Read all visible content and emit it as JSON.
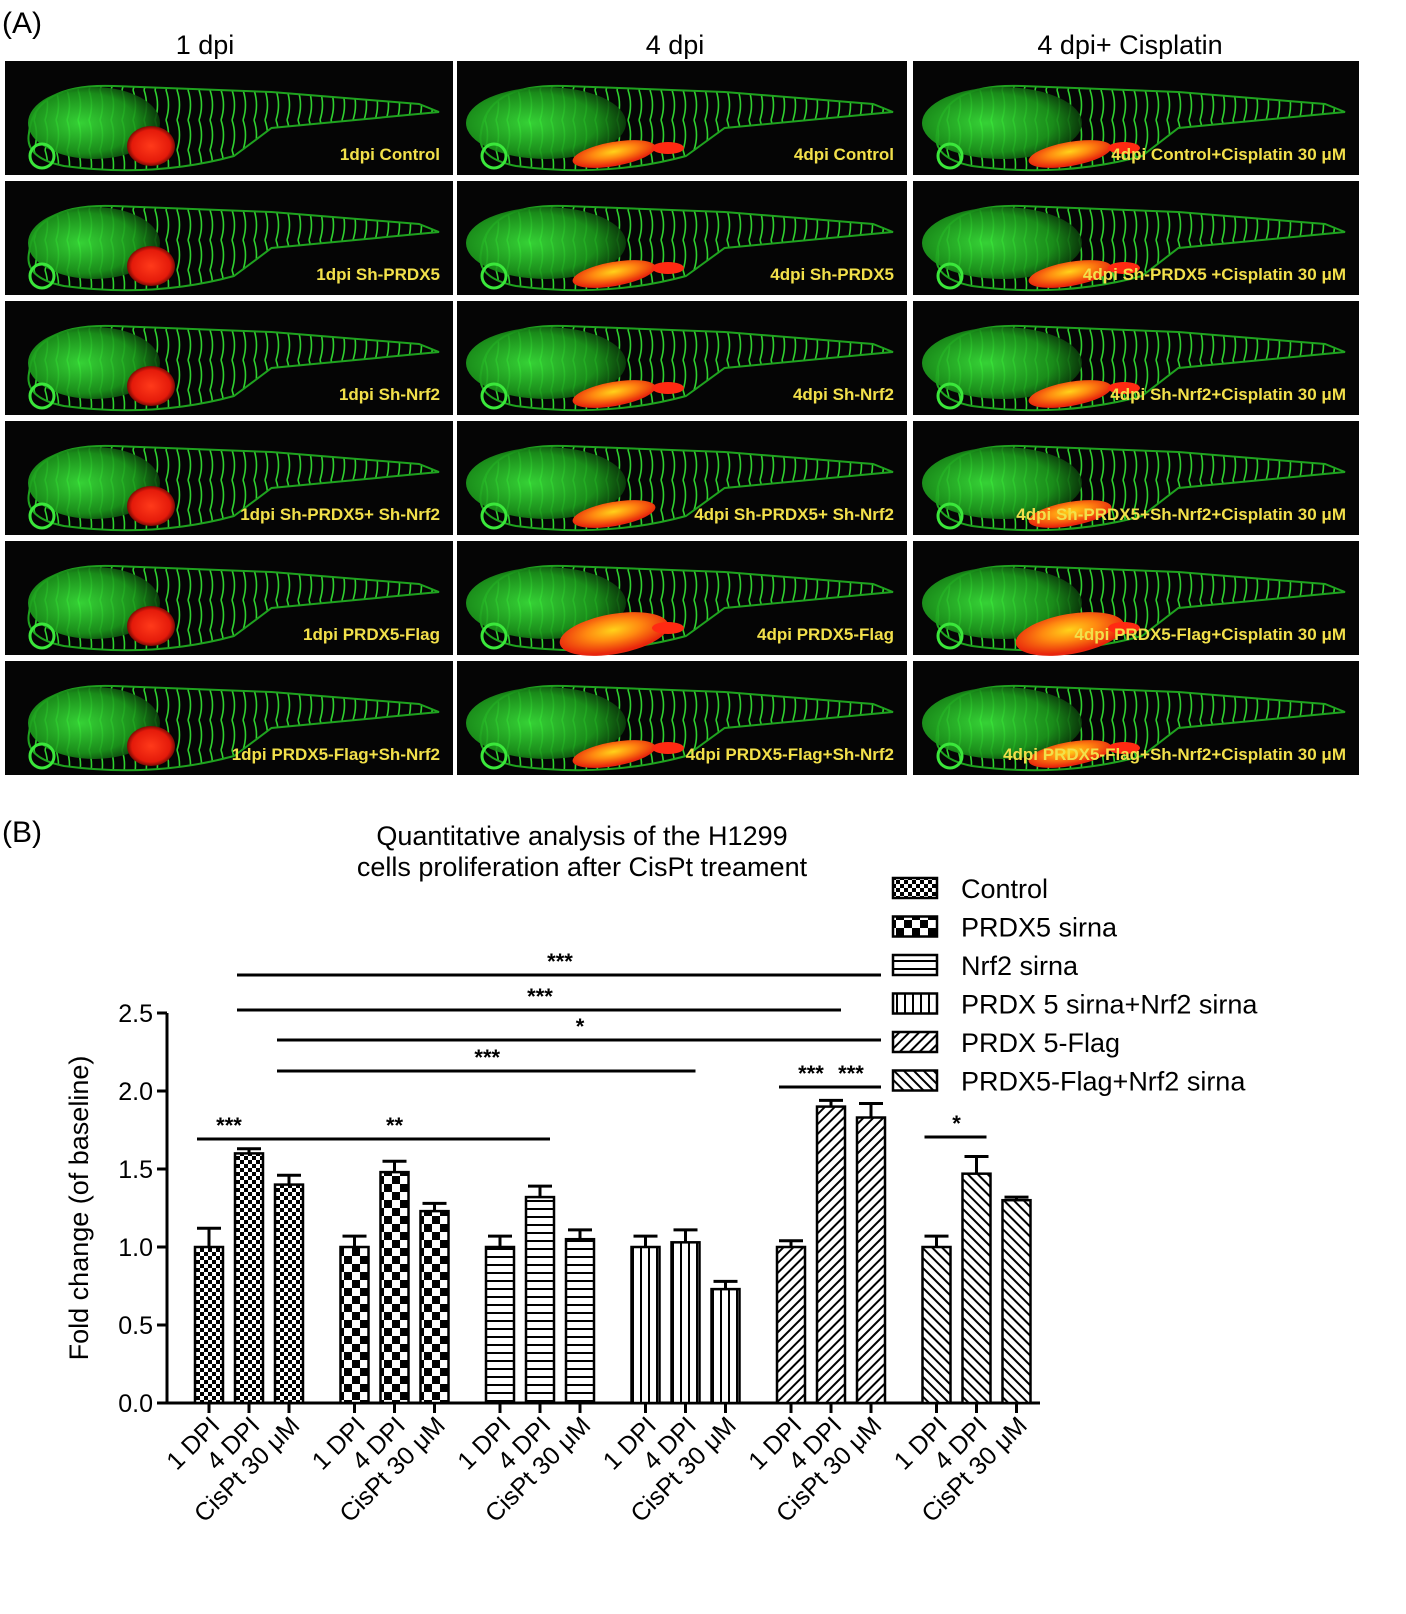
{
  "panel_a": {
    "label": "(A)",
    "column_headers": [
      "1 dpi",
      "4 dpi",
      "4 dpi+ Cisplatin"
    ],
    "rows": [
      [
        "1dpi  Control",
        "4dpi  Control",
        "4dpi  Control+Cisplatin 30 μM"
      ],
      [
        "1dpi  Sh-PRDX5",
        "4dpi  Sh-PRDX5",
        "4dpi  Sh-PRDX5 +Cisplatin 30 μM"
      ],
      [
        "1dpi  Sh-Nrf2",
        "4dpi  Sh-Nrf2",
        "4dpi  Sh-Nrf2+Cisplatin 30 μM"
      ],
      [
        "1dpi  Sh-PRDX5+ Sh-Nrf2",
        "4dpi  Sh-PRDX5+ Sh-Nrf2",
        "4dpi  Sh-PRDX5+Sh-Nrf2+Cisplatin 30 μM"
      ],
      [
        "1dpi  PRDX5-Flag",
        "4dpi  PRDX5-Flag",
        "4dpi  PRDX5-Flag+Cisplatin 30 μM"
      ],
      [
        "1dpi  PRDX5-Flag+Sh-Nrf2",
        "4dpi  PRDX5-Flag+Sh-Nrf2",
        "4dpi  PRDX5-Flag+Sh-Nrf2+Cisplatin 30 μM"
      ]
    ],
    "colors": {
      "background": "#050505",
      "vessels": "#2fd12f",
      "tumor": "#ff2a12",
      "tumor_mix": "#ff8a10",
      "caption": "#f2e04a"
    }
  },
  "panel_b": {
    "label": "(B)"
  },
  "chart_data": {
    "type": "bar",
    "title": "Quantitative analysis of the H1299 cells proliferation after CisPt treament",
    "title_lines": [
      "Quantitative analysis of the H1299",
      "cells proliferation after CisPt treament"
    ],
    "ylabel": "Fold change (of baseline)",
    "xlabel": "",
    "ylim": [
      0,
      2.5
    ],
    "yticks": [
      "0.0",
      "0.5",
      "1.0",
      "1.5",
      "2.0",
      "2.5"
    ],
    "categories": [
      "1 DPI",
      "4 DPI",
      "CisPt 30 μM"
    ],
    "series": [
      {
        "name": "Control",
        "pattern": "checker-fine",
        "values": [
          1.0,
          1.6,
          1.4
        ],
        "errors": [
          0.12,
          0.03,
          0.06
        ]
      },
      {
        "name": "PRDX5 sirna",
        "pattern": "checker-coarse",
        "values": [
          1.0,
          1.48,
          1.23
        ],
        "errors": [
          0.07,
          0.07,
          0.05
        ]
      },
      {
        "name": "Nrf2 sirna",
        "pattern": "horizontal",
        "values": [
          1.0,
          1.32,
          1.05
        ],
        "errors": [
          0.07,
          0.07,
          0.06
        ]
      },
      {
        "name": "PRDX 5 sirna+Nrf2 sirna",
        "pattern": "vertical",
        "values": [
          1.0,
          1.03,
          0.73
        ],
        "errors": [
          0.07,
          0.08,
          0.05
        ]
      },
      {
        "name": "PRDX 5-Flag",
        "pattern": "diagonal",
        "values": [
          1.0,
          1.9,
          1.83
        ],
        "errors": [
          0.04,
          0.04,
          0.09
        ]
      },
      {
        "name": "PRDX5-Flag+Nrf2 sirna",
        "pattern": "diagonal-back",
        "values": [
          1.0,
          1.47,
          1.3
        ],
        "errors": [
          0.07,
          0.11,
          0.02
        ]
      }
    ],
    "significance": [
      {
        "label": "***",
        "from": [
          0,
          1
        ],
        "to": [
          4,
          2
        ]
      },
      {
        "label": "***",
        "from": [
          0,
          1
        ],
        "to": [
          4,
          1
        ]
      },
      {
        "label": "*",
        "from": [
          0,
          2
        ],
        "to": [
          4,
          2
        ]
      },
      {
        "label": "***",
        "from": [
          0,
          2
        ],
        "to": [
          3,
          1
        ]
      },
      {
        "label": "***",
        "from": [
          0,
          0
        ],
        "to": [
          0,
          1
        ]
      },
      {
        "label": "**",
        "from": [
          0,
          1
        ],
        "to": [
          2,
          1
        ]
      },
      {
        "label": "***",
        "from": [
          4,
          0
        ],
        "to": [
          4,
          1
        ]
      },
      {
        "label": "***",
        "from": [
          4,
          1
        ],
        "to": [
          4,
          2
        ]
      },
      {
        "label": "*",
        "from": [
          5,
          0
        ],
        "to": [
          5,
          1
        ]
      }
    ],
    "legend_position": "top-right"
  }
}
